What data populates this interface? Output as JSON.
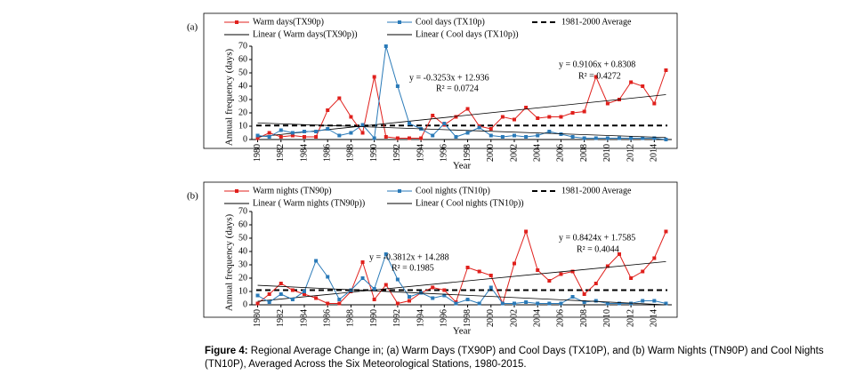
{
  "chart_data": [
    {
      "type": "line",
      "label": "(a)",
      "x": [
        1980,
        1981,
        1982,
        1983,
        1984,
        1985,
        1986,
        1987,
        1988,
        1989,
        1990,
        1991,
        1992,
        1993,
        1994,
        1995,
        1996,
        1997,
        1998,
        1999,
        2000,
        2001,
        2002,
        2003,
        2004,
        2005,
        2006,
        2007,
        2008,
        2009,
        2010,
        2011,
        2012,
        2013,
        2014,
        2015
      ],
      "xlim": [
        1979.5,
        2015.5
      ],
      "xticks": [
        1980,
        1982,
        1984,
        1986,
        1988,
        1990,
        1992,
        1994,
        1996,
        1998,
        2000,
        2002,
        2004,
        2006,
        2008,
        2010,
        2012,
        2014
      ],
      "ylim": [
        0,
        70
      ],
      "yticks": [
        0,
        10,
        20,
        30,
        40,
        50,
        60,
        70
      ],
      "y_label": "Annual frequency (days)",
      "x_label": "Year",
      "series": [
        {
          "name": "Warm days(TX90p)",
          "color": "#e0201c",
          "marker": "square",
          "trend_name": "Linear ( Warm days(TX90p))",
          "values": [
            1,
            5,
            2,
            3,
            2,
            2,
            22,
            31,
            17,
            5,
            47,
            2,
            1,
            1,
            1,
            18,
            11,
            17,
            23,
            10,
            8,
            17,
            15,
            24,
            16,
            17,
            17,
            20,
            21,
            47,
            27,
            30,
            43,
            40,
            27,
            52
          ]
        },
        {
          "name": "Cool days (TX10p)",
          "color": "#2a7ab8",
          "marker": "square",
          "trend_name": "Linear ( Cool days (TX10p))",
          "values": [
            3,
            2,
            7,
            5,
            6,
            6,
            8,
            3,
            5,
            11,
            1,
            70,
            40,
            12,
            8,
            3,
            12,
            2,
            5,
            9,
            3,
            2,
            3,
            2,
            3,
            6,
            4,
            2,
            1,
            1,
            1,
            1,
            1,
            1,
            1,
            0
          ]
        }
      ],
      "reference": {
        "name": "1981-2000 Average",
        "value": 10.5
      },
      "annotations": [
        "y = -0.3253x + 12.936",
        "R² = 0.0724",
        "y = 0.9106x + 0.8308",
        "R² = 0.4272"
      ]
    },
    {
      "type": "line",
      "label": "(b)",
      "x": [
        1980,
        1981,
        1982,
        1983,
        1984,
        1985,
        1986,
        1987,
        1988,
        1989,
        1990,
        1991,
        1992,
        1993,
        1994,
        1995,
        1996,
        1997,
        1998,
        1999,
        2000,
        2001,
        2002,
        2003,
        2004,
        2005,
        2006,
        2007,
        2008,
        2009,
        2010,
        2011,
        2012,
        2013,
        2014,
        2015
      ],
      "xlim": [
        1979.5,
        2015.5
      ],
      "xticks": [
        1980,
        1982,
        1984,
        1986,
        1988,
        1990,
        1992,
        1994,
        1996,
        1998,
        2000,
        2002,
        2004,
        2006,
        2008,
        2010,
        2012,
        2014
      ],
      "ylim": [
        0,
        70
      ],
      "yticks": [
        0,
        10,
        20,
        30,
        40,
        50,
        60,
        70
      ],
      "y_label": "Annual frequency (days)",
      "x_label": "Year",
      "series": [
        {
          "name": "Warm nights (TN90p)",
          "color": "#e0201c",
          "marker": "square",
          "trend_name": "Linear ( Warm nights (TN90p))",
          "values": [
            1,
            8,
            16,
            11,
            8,
            5,
            1,
            1,
            10,
            32,
            4,
            15,
            1,
            3,
            9,
            13,
            11,
            2,
            28,
            25,
            22,
            1,
            31,
            55,
            26,
            18,
            23,
            25,
            8,
            16,
            29,
            38,
            20,
            25,
            35,
            55
          ]
        },
        {
          "name": "Cool nights (TN10p)",
          "color": "#2a7ab8",
          "marker": "square",
          "trend_name": "Linear ( Cool nights (TN10p))",
          "values": [
            7,
            2,
            8,
            4,
            10,
            33,
            21,
            4,
            11,
            20,
            12,
            38,
            19,
            6,
            9,
            5,
            7,
            1,
            4,
            1,
            13,
            1,
            1,
            2,
            1,
            1,
            1,
            6,
            2,
            3,
            1,
            1,
            1,
            3,
            3,
            1
          ]
        }
      ],
      "reference": {
        "name": "1981-2000 Average",
        "value": 11
      },
      "annotations": [
        "y = -0.3812x + 14.288",
        "R² = 0.1985",
        "y = 0.8424x + 1.7585",
        "R² = 0.4044"
      ]
    }
  ],
  "caption": {
    "label": "Figure 4:",
    "text": " Regional Average Change in; (a) Warm Days (TX90P) and Cool Days (TX10P), and (b) Warm Nights (TN90P) and Cool Nights (TN10P), Averaged Across the Six Meteorological Stations, 1980-2015."
  }
}
